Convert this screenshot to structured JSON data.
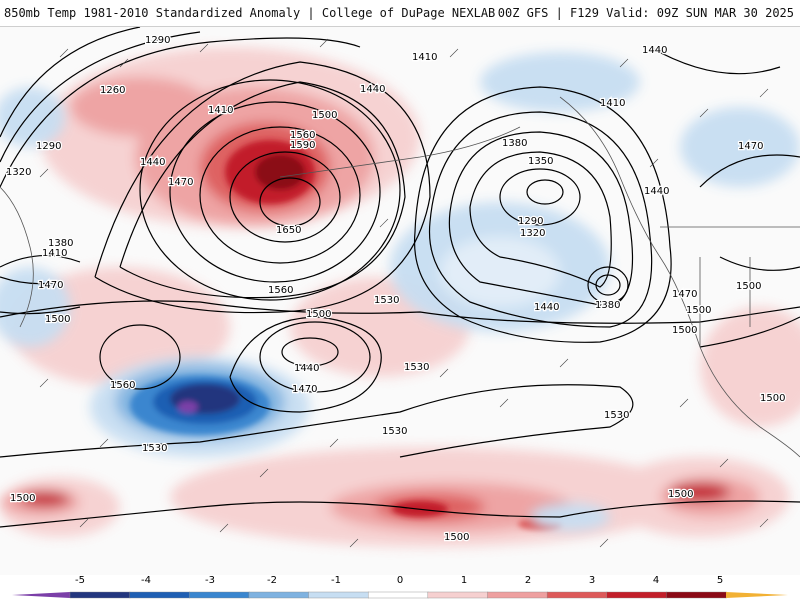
{
  "header": {
    "title_left": "850mb Temp 1981-2010 Standardized Anomaly | College of DuPage NEXLAB",
    "title_right": "00Z GFS | F129 Valid: 09Z SUN MAR 30 2025"
  },
  "contours": [
    {
      "text": "1290"
    },
    {
      "text": "1260"
    },
    {
      "text": "1290"
    },
    {
      "text": "1320"
    },
    {
      "text": "1380"
    },
    {
      "text": "1410"
    },
    {
      "text": "1470"
    },
    {
      "text": "1500"
    },
    {
      "text": "1440"
    },
    {
      "text": "1470"
    },
    {
      "text": "1410"
    },
    {
      "text": "1500"
    },
    {
      "text": "1560"
    },
    {
      "text": "1590"
    },
    {
      "text": "1650"
    },
    {
      "text": "1410"
    },
    {
      "text": "1440"
    },
    {
      "text": "1440"
    },
    {
      "text": "1410"
    },
    {
      "text": "1380"
    },
    {
      "text": "1350"
    },
    {
      "text": "1290"
    },
    {
      "text": "1320"
    },
    {
      "text": "1380"
    },
    {
      "text": "1440"
    },
    {
      "text": "1470"
    },
    {
      "text": "1440"
    },
    {
      "text": "1470"
    },
    {
      "text": "1500"
    },
    {
      "text": "1500"
    },
    {
      "text": "1500"
    },
    {
      "text": "1560"
    },
    {
      "text": "1530"
    },
    {
      "text": "1500"
    },
    {
      "text": "1440"
    },
    {
      "text": "1470"
    },
    {
      "text": "1560"
    },
    {
      "text": "1530"
    },
    {
      "text": "1530"
    },
    {
      "text": "1530"
    },
    {
      "text": "1530"
    },
    {
      "text": "1500"
    },
    {
      "text": "1500"
    },
    {
      "text": "1500"
    },
    {
      "text": "1500"
    }
  ],
  "colorbar": {
    "ticks": [
      "-5",
      "-4",
      "-3",
      "-2",
      "-1",
      "0",
      "1",
      "2",
      "3",
      "4",
      "5"
    ],
    "colors": [
      "#7b3fa8",
      "#23367e",
      "#1f5fb3",
      "#3a86cf",
      "#7fb2e0",
      "#c7def2",
      "#ffffff",
      "#f6d0d0",
      "#eea0a0",
      "#dd5a5a",
      "#c21f2a",
      "#8b0a16",
      "#f2b134"
    ]
  }
}
